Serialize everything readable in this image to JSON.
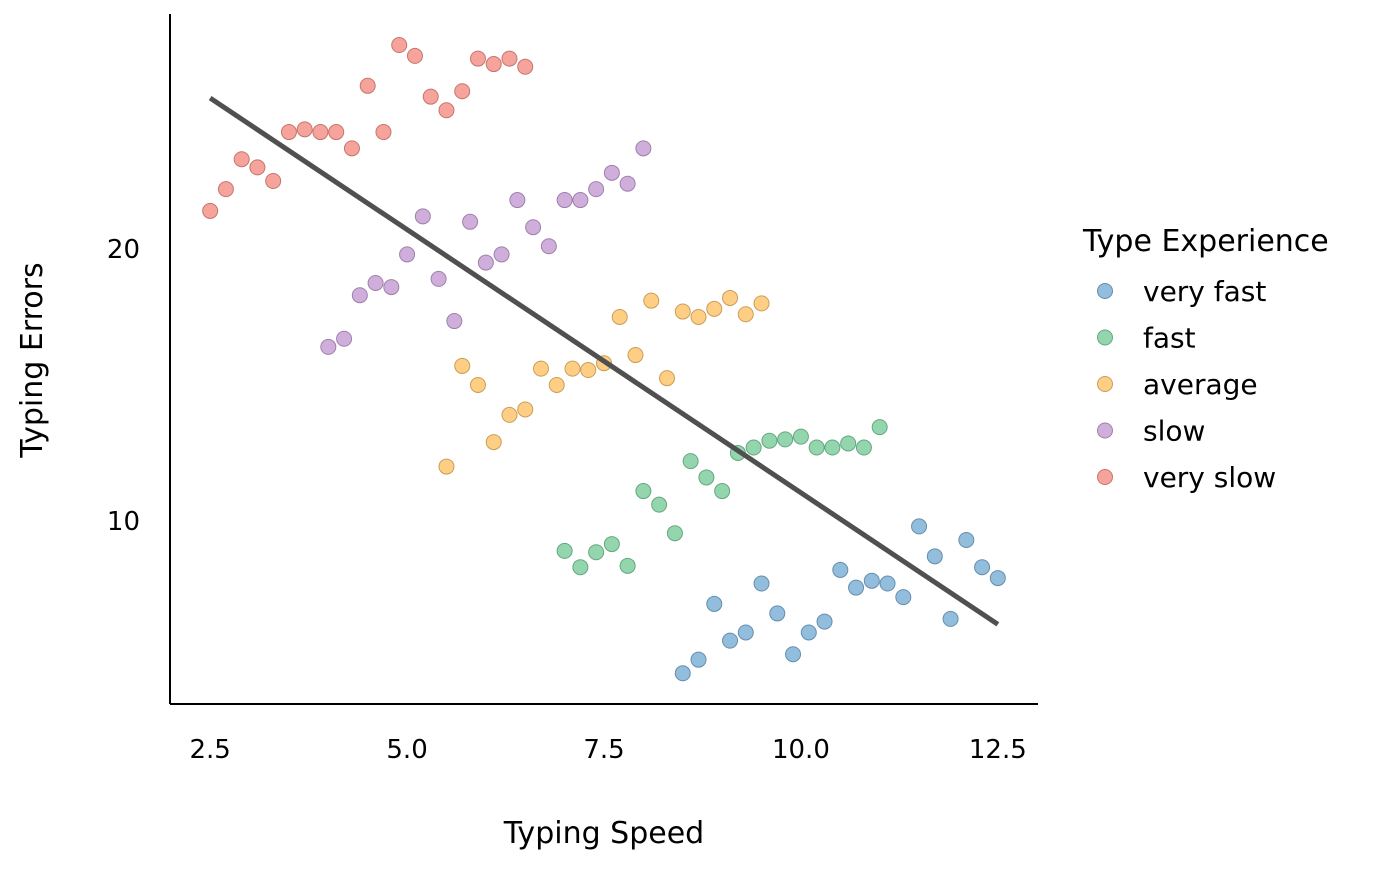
{
  "chart_data": {
    "type": "scatter",
    "title": "",
    "xlabel": "Typing Speed",
    "ylabel": "Typing Errors",
    "xlim": [
      1.99,
      13.01
    ],
    "ylim": [
      3.27,
      28.64
    ],
    "xticks": [
      2.5,
      5.0,
      7.5,
      10.0,
      12.5
    ],
    "xtick_labels": [
      "2.5",
      "5.0",
      "7.5",
      "10.0",
      "12.5"
    ],
    "yticks": [
      10,
      20
    ],
    "ytick_labels": [
      "10",
      "20"
    ],
    "grid": false,
    "legend": {
      "title": "Type Experience",
      "placement": "right"
    },
    "series": [
      {
        "name": "very fast",
        "color": "#7fb1d7",
        "x": [
          8.5,
          8.7,
          8.9,
          9.1,
          9.3,
          9.5,
          9.7,
          9.9,
          10.1,
          10.3,
          10.5,
          10.7,
          10.9,
          11.1,
          11.3,
          11.5,
          11.7,
          11.9,
          12.1,
          12.3,
          12.5
        ],
        "y": [
          4.4,
          4.9,
          6.95,
          5.6,
          5.9,
          7.7,
          6.6,
          5.1,
          5.9,
          6.3,
          8.2,
          7.55,
          7.8,
          7.7,
          7.2,
          9.8,
          8.7,
          6.4,
          9.3,
          8.3,
          7.9
        ]
      },
      {
        "name": "fast",
        "color": "#80cfa0",
        "x": [
          7.0,
          7.2,
          7.4,
          7.6,
          7.8,
          8.0,
          8.2,
          8.4,
          8.6,
          8.8,
          9.0,
          9.2,
          9.4,
          9.6,
          9.8,
          10.0,
          10.2,
          10.4,
          10.6,
          10.8,
          11.0
        ],
        "y": [
          8.9,
          8.3,
          8.85,
          9.15,
          8.35,
          11.1,
          10.6,
          9.55,
          12.2,
          11.6,
          11.1,
          12.5,
          12.7,
          12.95,
          13.0,
          13.1,
          12.7,
          12.7,
          12.85,
          12.7,
          13.45
        ]
      },
      {
        "name": "average",
        "color": "#fdc56f",
        "x": [
          5.5,
          5.7,
          5.9,
          6.1,
          6.3,
          6.5,
          6.7,
          6.9,
          7.1,
          7.3,
          7.5,
          7.7,
          7.9,
          8.1,
          8.3,
          8.5,
          8.7,
          8.9,
          9.1,
          9.3,
          9.5
        ],
        "y": [
          12.0,
          15.7,
          15.0,
          12.9,
          13.9,
          14.1,
          15.6,
          15.0,
          15.6,
          15.55,
          15.8,
          17.5,
          16.1,
          18.1,
          15.25,
          17.7,
          17.5,
          17.8,
          18.2,
          17.6,
          18.0
        ]
      },
      {
        "name": "slow",
        "color": "#c7a0d6",
        "x": [
          4.0,
          4.2,
          4.4,
          4.6,
          4.8,
          5.0,
          5.2,
          5.4,
          5.6,
          5.8,
          6.0,
          6.2,
          6.4,
          6.6,
          6.8,
          7.0,
          7.2,
          7.4,
          7.6,
          7.8,
          8.0
        ],
        "y": [
          16.4,
          16.7,
          18.3,
          18.75,
          18.6,
          19.8,
          21.2,
          18.9,
          17.35,
          21.0,
          19.5,
          19.8,
          21.8,
          20.8,
          20.1,
          21.8,
          21.8,
          22.2,
          22.8,
          22.4,
          23.7
        ]
      },
      {
        "name": "very slow",
        "color": "#f4948a",
        "x": [
          2.5,
          2.7,
          2.9,
          3.1,
          3.3,
          3.5,
          3.7,
          3.9,
          4.1,
          4.3,
          4.5,
          4.7,
          4.9,
          5.1,
          5.3,
          5.5,
          5.7,
          5.9,
          6.1,
          6.3,
          6.5
        ],
        "y": [
          21.4,
          22.2,
          23.3,
          23.0,
          22.5,
          24.3,
          24.4,
          24.3,
          24.3,
          23.7,
          26.0,
          24.3,
          27.5,
          27.1,
          25.6,
          25.1,
          25.8,
          27.0,
          26.8,
          27.0,
          26.7
        ]
      }
    ],
    "trend_line": {
      "color": "#505050",
      "x": [
        2.5,
        12.5
      ],
      "y": [
        25.55,
        6.2
      ]
    }
  }
}
